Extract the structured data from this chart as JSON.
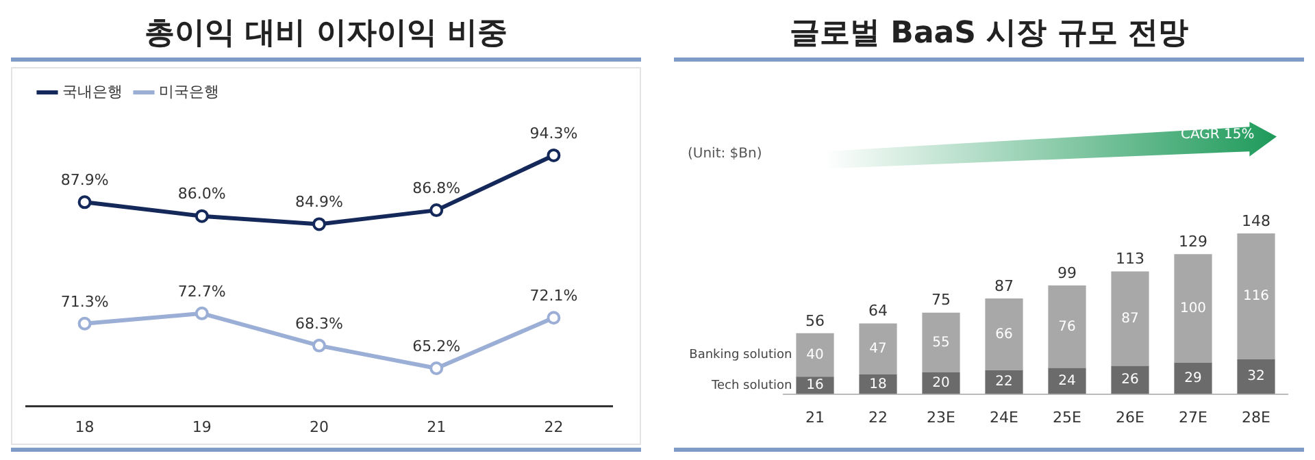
{
  "chart_data": [
    {
      "type": "line",
      "title": "총이익 대비 이자이익 비중",
      "categories": [
        "18",
        "19",
        "20",
        "21",
        "22"
      ],
      "series": [
        {
          "name": "국내은행",
          "color": "#14285a",
          "values": [
            87.9,
            86.0,
            84.9,
            86.8,
            94.3
          ],
          "value_labels": [
            "87.9%",
            "86.0%",
            "84.9%",
            "86.8%",
            "94.3%"
          ]
        },
        {
          "name": "미국은행",
          "color": "#9aaed6",
          "values": [
            71.3,
            72.7,
            68.3,
            65.2,
            72.1
          ],
          "value_labels": [
            "71.3%",
            "72.7%",
            "68.3%",
            "65.2%",
            "72.1%"
          ]
        }
      ],
      "marker": "circle",
      "legend": "top left",
      "grid": false,
      "tick_labels": "x"
    },
    {
      "type": "bar",
      "stacked": true,
      "title": "글로벌 BaaS 시장 규모 전망",
      "categories": [
        "21",
        "22",
        "23E",
        "24E",
        "25E",
        "26E",
        "27E",
        "28E"
      ],
      "series": [
        {
          "name": "Tech solution",
          "color": "#6b6b6b",
          "values": [
            16,
            18,
            20,
            22,
            24,
            26,
            29,
            32
          ]
        },
        {
          "name": "Banking solution",
          "color": "#a8a8a8",
          "values": [
            40,
            47,
            55,
            66,
            76,
            87,
            100,
            116
          ]
        }
      ],
      "totals": [
        "56",
        "64",
        "75",
        "87",
        "99",
        "113",
        "129",
        "148"
      ],
      "data_labels": true,
      "legend": false,
      "grid": false,
      "tick_labels": "x",
      "annotations": [
        "(Unit: $Bn)",
        "CAGR 15%"
      ]
    }
  ]
}
